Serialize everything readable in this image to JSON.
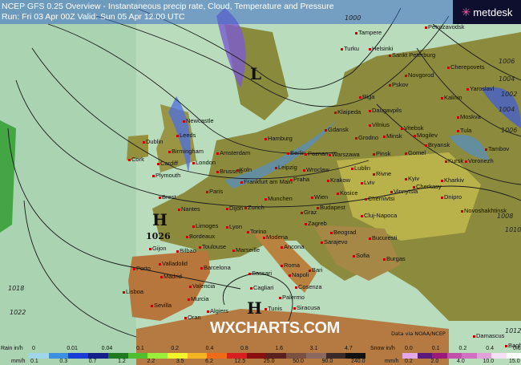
{
  "header": {
    "title": "NCEP GFS 0.25 Overview - Instantaneous precip rate, Cloud, Temperature and Pressure",
    "run": "Run: Fri 03 Apr 00Z Valid: Sun 05 Apr 12:00 UTC"
  },
  "logo": {
    "text": "metdesk"
  },
  "watermark": "WXCHARTS.COM",
  "credit": "Data via NOAA/NCEP",
  "pressure_centers": [
    {
      "type": "H",
      "value": "1026"
    },
    {
      "type": "H",
      "value": ""
    },
    {
      "type": "L",
      "value": ""
    }
  ],
  "isobar_labels": [
    "1006",
    "1004",
    "1002",
    "1004",
    "1006",
    "1008",
    "1010",
    "1012",
    "1018",
    "1022",
    "1000"
  ],
  "cities": [
    "Newcastle",
    "Leeds",
    "Dublin",
    "Cork",
    "Birmingham",
    "London",
    "Cardiff",
    "Plymouth",
    "Amsterdam",
    "Hamburg",
    "Berlin",
    "Brussels",
    "Koln",
    "Frankfurt am Main",
    "Leipzig",
    "Praha",
    "Paris",
    "Brest",
    "Nantes",
    "Dijon",
    "Munchen",
    "Zurich",
    "Graz",
    "Wien",
    "Limoges",
    "Lyon",
    "Bordeaux",
    "Toulouse",
    "Marseille",
    "Gijon",
    "Bilbao",
    "Porto",
    "Valladolid",
    "Madrid",
    "Valencia",
    "Lisboa",
    "Murcia",
    "Sevilla",
    "Barcelona",
    "Torino",
    "Modena",
    "Ancona",
    "Roma",
    "Napoli",
    "Bari",
    "Sassari",
    "Cagliari",
    "Palermo",
    "Siracusa",
    "Cosenza",
    "Tunis",
    "Algiers",
    "Oran",
    "Zagreb",
    "Beograd",
    "Sarajevo",
    "Sofia",
    "Bucuresti",
    "Burgas",
    "Poznan",
    "Warszawa",
    "Wroclaw",
    "Krakow",
    "Lublin",
    "Grodno",
    "Minsk",
    "Vilnius",
    "Riga",
    "Klaipeda",
    "Gdansk",
    "Daugavpils",
    "Pskov",
    "Tampere",
    "Turku",
    "Helsinki",
    "Sankt Peterburg",
    "Novgorod",
    "Petrozavodsk",
    "Cherepovets",
    "Yaroslavl",
    "Kalinin",
    "Moskva",
    "Tula",
    "Vitebsk",
    "Mogilev",
    "Gomel",
    "Bryansk",
    "Kursk",
    "Voronezh",
    "Tambov",
    "Pinsk",
    "Rivne",
    "Lviv",
    "Kyiv",
    "Vinnytsia",
    "Cherkasy",
    "Dnipro",
    "Kharkiv",
    "Chernivtsi",
    "Kosice",
    "Budapest",
    "Cluj-Napoca",
    "Novoshakhtinsk",
    "Damascus",
    "Baghdad"
  ],
  "legend": {
    "rain_label": "Rain in/h",
    "rain_mm_label": "mm/h",
    "rain_in": [
      "0",
      "0.01",
      "0.04",
      "0.1",
      "0.2",
      "0.4",
      "0.8",
      "1.6",
      "3.1",
      "4.7"
    ],
    "rain_mm": [
      "0.1",
      "0.3",
      "0.7",
      "1.2",
      "2.2",
      "3.5",
      "6.2",
      "12.5",
      "25.0",
      "50.0",
      "90.0",
      "240.0"
    ],
    "rain_colors": [
      "#9fd6ea",
      "#3d8fe0",
      "#1b3fd6",
      "#14208a",
      "#1f7a1f",
      "#4fbf2f",
      "#9bef3a",
      "#f4f42a",
      "#f5b520",
      "#f06a18",
      "#d81f1f",
      "#8a1010",
      "#5a2020",
      "#7a5040",
      "#8a6a60",
      "#3a2a2a",
      "#111111"
    ],
    "snow_label": "Snow in/h",
    "snow_mm_label": "mm/h",
    "snow_in": [
      "0.0",
      "0.1",
      "0.2",
      "0.4",
      "0.6"
    ],
    "snow_mm": [
      "0.2",
      "2.0",
      "4.0",
      "10.0",
      "15.0"
    ],
    "snow_colors": [
      "#e3a8e8",
      "#5a1a7a",
      "#9a1a7a",
      "#c050a8",
      "#d070c0",
      "#e0a0d8",
      "#f4e0f4",
      "#ffffff"
    ]
  }
}
